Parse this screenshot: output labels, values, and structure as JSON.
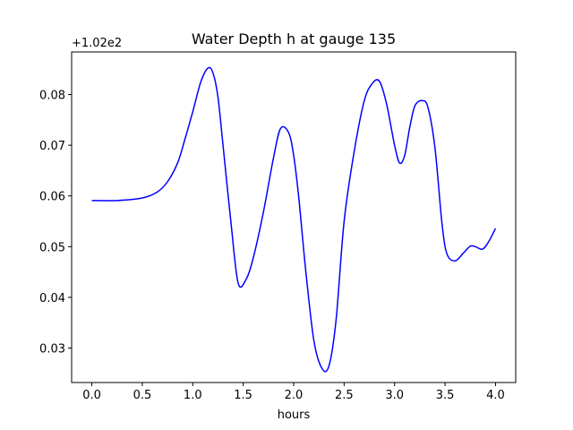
{
  "chart_data": {
    "type": "line",
    "title": "Water Depth h at gauge 135",
    "xlabel": "hours",
    "ylabel": "",
    "y_offset_label": "+1.02e2",
    "y_offset": 102,
    "xlim": [
      -0.2,
      4.2
    ],
    "ylim": [
      0.0232,
      0.0884
    ],
    "x_ticks": [
      0.0,
      0.5,
      1.0,
      1.5,
      2.0,
      2.5,
      3.0,
      3.5,
      4.0
    ],
    "x_tick_labels": [
      "0.0",
      "0.5",
      "1.0",
      "1.5",
      "2.0",
      "2.5",
      "3.0",
      "3.5",
      "4.0"
    ],
    "y_ticks": [
      0.03,
      0.04,
      0.05,
      0.06,
      0.07,
      0.08
    ],
    "y_tick_labels": [
      "0.03",
      "0.04",
      "0.05",
      "0.06",
      "0.07",
      "0.08"
    ],
    "grid": false,
    "series": [
      {
        "color": "#0000ff",
        "x": [
          0.0,
          0.25,
          0.5,
          0.65,
          0.75,
          0.85,
          0.92,
          1.0,
          1.08,
          1.15,
          1.2,
          1.25,
          1.3,
          1.38,
          1.45,
          1.53,
          1.6,
          1.7,
          1.8,
          1.87,
          1.95,
          2.0,
          2.05,
          2.12,
          2.2,
          2.28,
          2.35,
          2.42,
          2.5,
          2.6,
          2.7,
          2.78,
          2.85,
          2.92,
          3.0,
          3.05,
          3.1,
          3.15,
          3.2,
          3.27,
          3.33,
          3.4,
          3.47,
          3.52,
          3.6,
          3.68,
          3.75,
          3.8,
          3.87,
          3.93,
          4.0
        ],
        "y": [
          0.0591,
          0.0591,
          0.0596,
          0.0608,
          0.0628,
          0.0665,
          0.071,
          0.0766,
          0.0825,
          0.0852,
          0.0843,
          0.0795,
          0.07,
          0.0545,
          0.0428,
          0.0436,
          0.0478,
          0.0568,
          0.0675,
          0.0733,
          0.0725,
          0.068,
          0.0598,
          0.0452,
          0.0315,
          0.026,
          0.0265,
          0.0355,
          0.055,
          0.0688,
          0.0788,
          0.0822,
          0.0826,
          0.0782,
          0.07,
          0.0665,
          0.068,
          0.0735,
          0.0777,
          0.0788,
          0.0775,
          0.0695,
          0.0545,
          0.0485,
          0.0472,
          0.0487,
          0.0501,
          0.05,
          0.0495,
          0.0509,
          0.0536
        ]
      }
    ]
  }
}
